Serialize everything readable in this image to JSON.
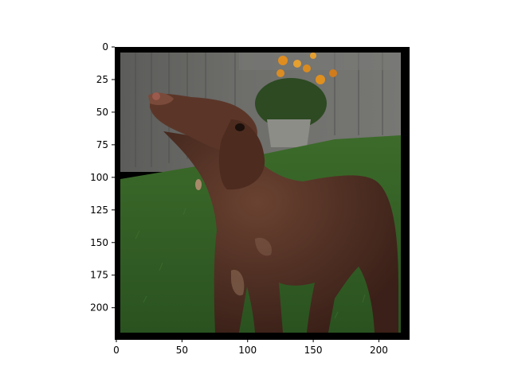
{
  "figure": {
    "image_extent": {
      "x": [
        0,
        224
      ],
      "y": [
        224,
        0
      ]
    },
    "x_ticks": [
      "0",
      "50",
      "100",
      "150",
      "200"
    ],
    "y_ticks": [
      "0",
      "25",
      "50",
      "75",
      "100",
      "125",
      "150",
      "175",
      "200"
    ],
    "x_tick_values": [
      0,
      50,
      100,
      150,
      200
    ],
    "y_tick_values": [
      0,
      25,
      50,
      75,
      100,
      125,
      150,
      175,
      200
    ]
  },
  "photo": {
    "subject": "brown dog",
    "subject_icon": "dog-photo",
    "colors": {
      "frame": "#000000",
      "grass": "#2f5a22",
      "fence": "#6a6a68",
      "dog": "#4a2a1e",
      "flowers": "#d88a20"
    }
  }
}
